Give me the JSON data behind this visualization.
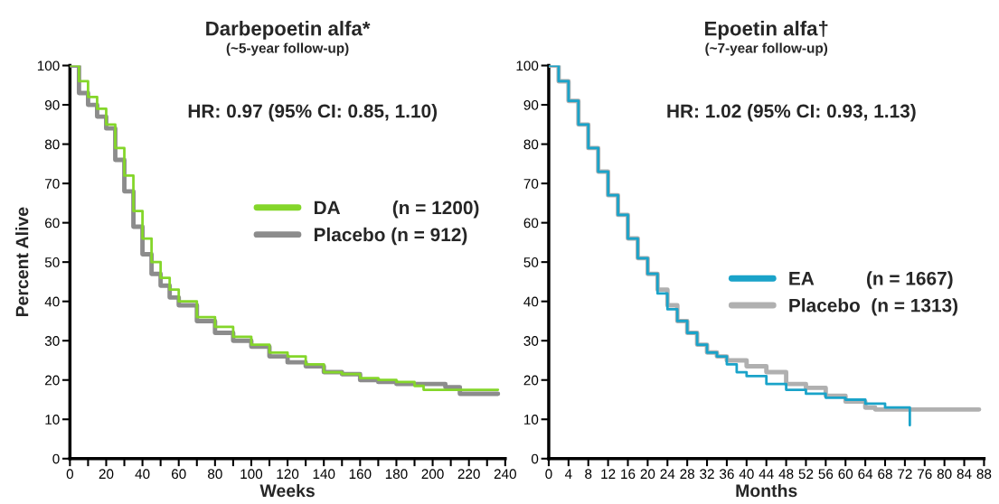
{
  "chart_data": [
    {
      "type": "step",
      "title": "Darbepoetin alfa*",
      "subtitle": "(~5-year follow-up)",
      "xlabel": "Weeks",
      "ylabel": "Percent Alive",
      "annotations": [
        "HR: 0.97 (95% CI: 0.85, 1.10)"
      ],
      "x": [
        0,
        5,
        10,
        15,
        20,
        25,
        30,
        35,
        40,
        45,
        50,
        55,
        60,
        70,
        80,
        90,
        100,
        110,
        120,
        130,
        140,
        150,
        160,
        170,
        180,
        190,
        195,
        200,
        207,
        215,
        236
      ],
      "series": [
        {
          "name": "DA          (n = 1200)",
          "color": "#84d62a",
          "values": [
            100,
            96,
            92,
            89,
            85,
            79,
            72,
            63,
            56,
            50,
            46,
            43,
            40,
            36,
            33.5,
            31,
            29,
            27,
            26,
            24,
            22,
            21.5,
            20.5,
            20,
            19.5,
            18.5,
            17.5,
            17.5,
            17.5,
            17.5,
            17.5
          ]
        },
        {
          "name": "Placebo (n = 912)",
          "color": "#8c8c8c",
          "values": [
            100,
            93,
            90,
            87,
            84,
            76,
            68,
            59,
            52,
            47,
            44,
            41,
            39,
            35,
            32,
            30,
            28.5,
            26,
            24.5,
            23.5,
            22,
            21.5,
            20,
            19.5,
            19,
            19,
            19,
            19,
            18.2,
            16.5,
            16.5
          ]
        }
      ],
      "xlim": [
        0,
        240
      ],
      "ylim": [
        0,
        100
      ],
      "xticks": [
        0,
        {
          "value": 10,
          "label": null
        },
        20,
        {
          "value": 30,
          "label": null
        },
        40,
        {
          "value": 50,
          "label": null
        },
        60,
        {
          "value": 70,
          "label": null
        },
        80,
        {
          "value": 90,
          "label": null
        },
        100,
        {
          "value": 110,
          "label": null
        },
        120,
        {
          "value": 130,
          "label": null
        },
        140,
        {
          "value": 150,
          "label": null
        },
        160,
        {
          "value": 170,
          "label": null
        },
        180,
        {
          "value": 190,
          "label": null
        },
        200,
        {
          "value": 210,
          "label": null
        },
        220,
        {
          "value": 230,
          "label": null
        },
        240
      ],
      "yticks": [
        0,
        10,
        20,
        30,
        40,
        50,
        60,
        70,
        80,
        90,
        100
      ],
      "legend": "center right",
      "grid": false
    },
    {
      "type": "step",
      "title": "Epoetin alfa†",
      "subtitle": "(~7-year follow-up)",
      "xlabel": "Months",
      "annotations": [
        "HR: 1.02 (95% CI: 0.93, 1.13)"
      ],
      "series": [
        {
          "name": "EA          (n = 1667)",
          "color": "#1aa3c9",
          "x": [
            0,
            2,
            4,
            6,
            8,
            10,
            12,
            14,
            16,
            18,
            20,
            22,
            24,
            26,
            28,
            30,
            32,
            34,
            36,
            38,
            40,
            44,
            48,
            52,
            56,
            60,
            64,
            68,
            73,
            73
          ],
          "values": [
            100,
            96,
            91,
            85,
            79,
            73,
            67,
            62,
            56,
            51,
            47,
            42,
            38,
            35,
            32,
            29,
            27,
            26,
            24,
            22,
            21,
            19,
            17.5,
            16.5,
            15.5,
            15,
            14,
            13,
            13,
            8.5
          ]
        },
        {
          "name": "Placebo  (n = 1313)",
          "color": "#b0b0b0",
          "x": [
            0,
            2,
            4,
            6,
            8,
            10,
            12,
            14,
            16,
            18,
            20,
            22,
            24,
            26,
            28,
            30,
            32,
            34,
            36,
            40,
            44,
            48,
            52,
            56,
            60,
            64,
            66,
            87
          ],
          "values": [
            100,
            96,
            91,
            85,
            79,
            73,
            67,
            62,
            56,
            51,
            47,
            43,
            39,
            35,
            32,
            29,
            27,
            26,
            25,
            23.5,
            22,
            19,
            18,
            16,
            14.5,
            13,
            12.5,
            12.5
          ]
        }
      ],
      "xlim": [
        0,
        88
      ],
      "ylim": [
        0,
        100
      ],
      "xticks": [
        0,
        4,
        8,
        12,
        16,
        20,
        24,
        28,
        32,
        36,
        40,
        44,
        48,
        52,
        56,
        60,
        64,
        68,
        72,
        76,
        80,
        84,
        88
      ],
      "yticks": [
        0,
        10,
        20,
        30,
        40,
        50,
        60,
        70,
        80,
        90,
        100
      ],
      "legend": "center right",
      "grid": false
    }
  ]
}
